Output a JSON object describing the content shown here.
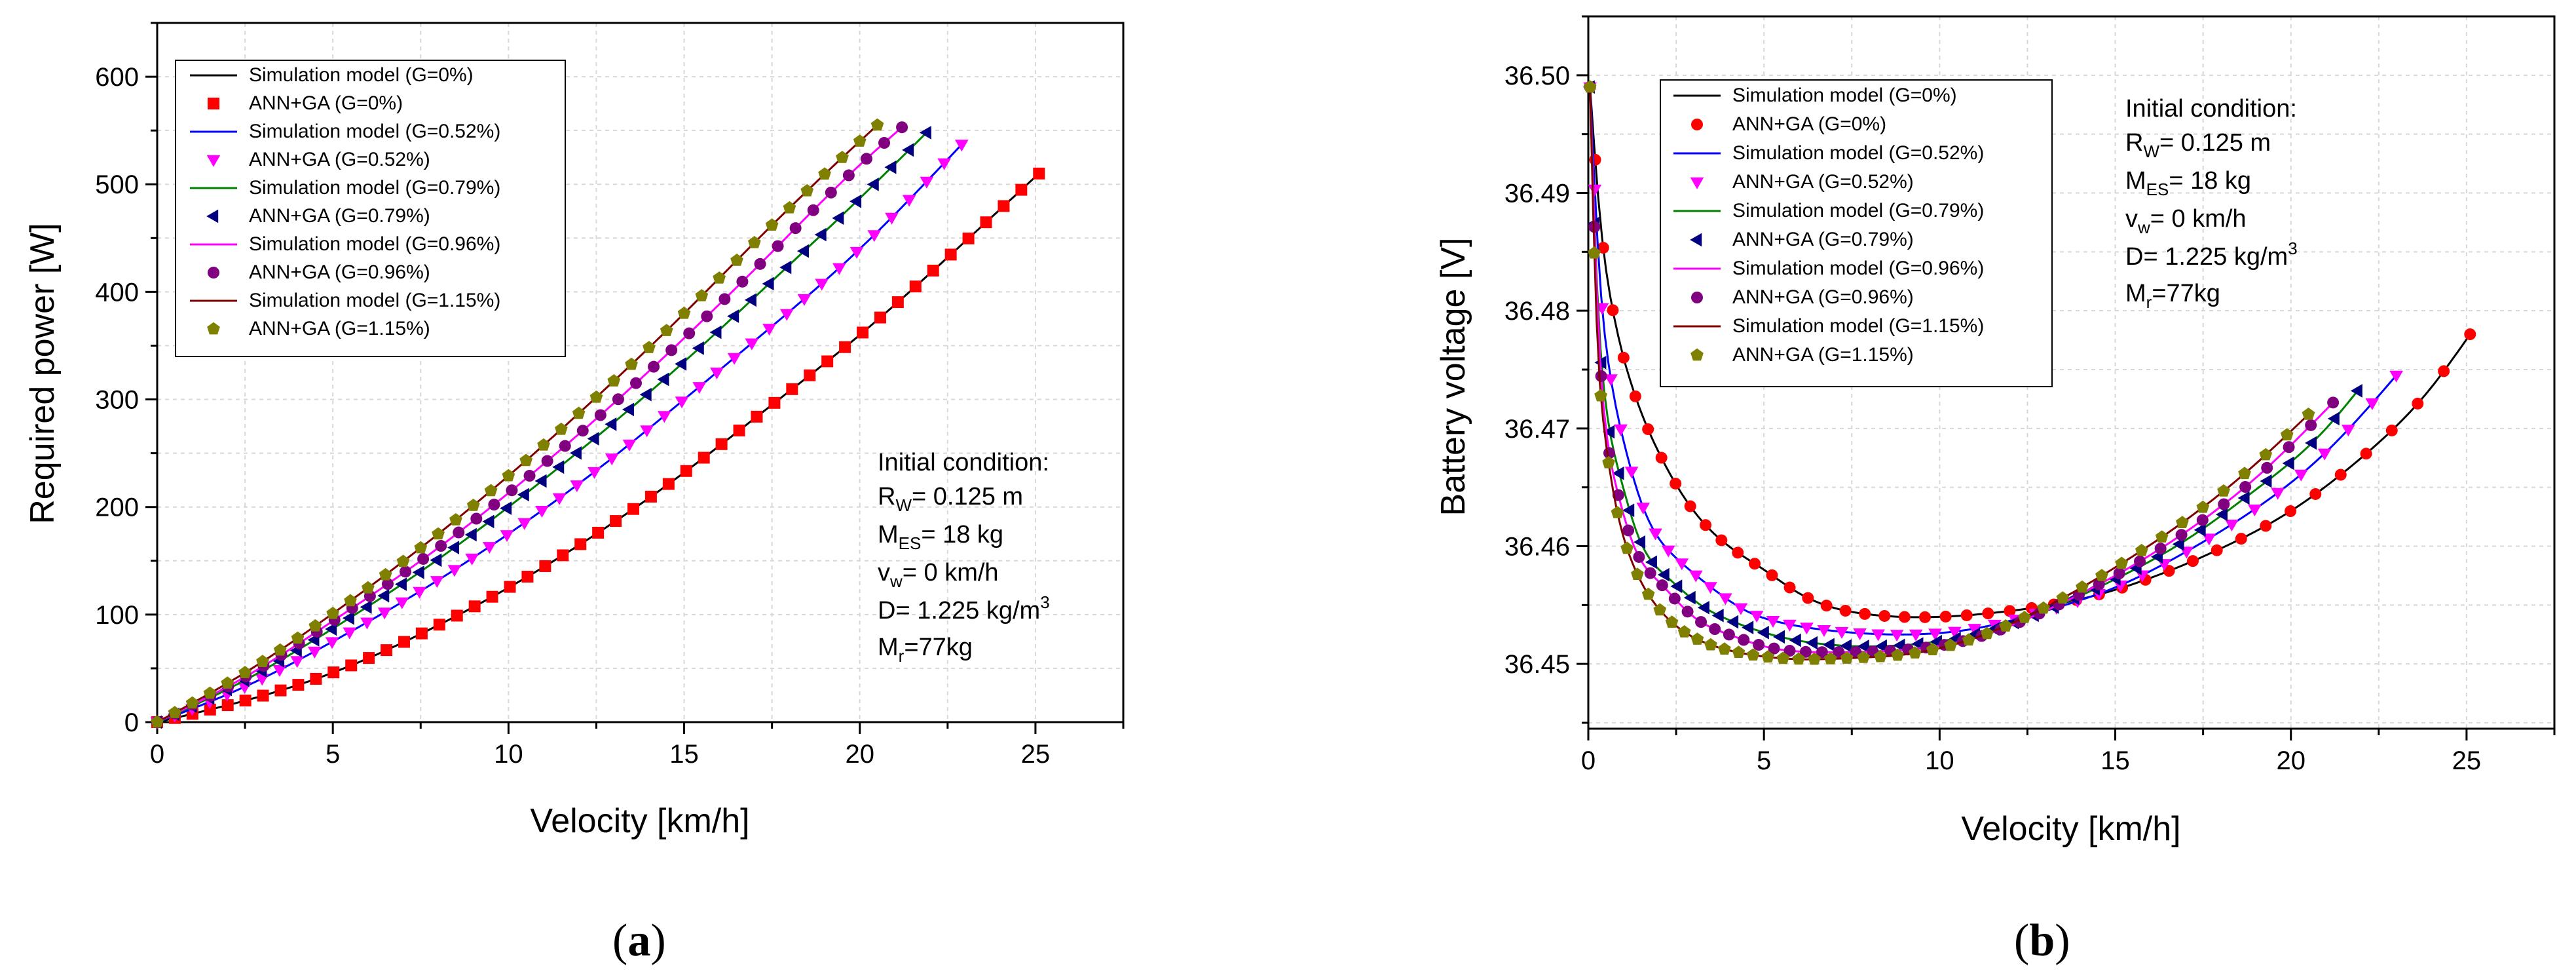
{
  "chart_data": [
    {
      "type": "line",
      "panel": "a",
      "caption": "(a)",
      "caption_letter": "a",
      "xlabel": "Velocity [km/h]",
      "ylabel": "Required power [W]",
      "xlim": [
        0,
        27.5
      ],
      "ylim": [
        0,
        650
      ],
      "xticks": [
        0,
        5,
        10,
        15,
        20,
        25
      ],
      "yticks": [
        0,
        100,
        200,
        300,
        400,
        500,
        600
      ],
      "grid": true,
      "legend": {
        "placement": "top-left",
        "entries": [
          {
            "label": "Simulation model (G=0%)",
            "kind": "line",
            "color": "#000000"
          },
          {
            "label": "ANN+GA (G=0%)",
            "kind": "marker",
            "marker": "square",
            "color": "#ff0000"
          },
          {
            "label": "Simulation model (G=0.52%)",
            "kind": "line",
            "color": "#0000ff"
          },
          {
            "label": "ANN+GA (G=0.52%)",
            "kind": "marker",
            "marker": "triangle-down",
            "color": "#ff00ff"
          },
          {
            "label": "Simulation model (G=0.79%)",
            "kind": "line",
            "color": "#008000"
          },
          {
            "label": "ANN+GA (G=0.79%)",
            "kind": "marker",
            "marker": "triangle-left",
            "color": "#000080"
          },
          {
            "label": "Simulation model (G=0.96%)",
            "kind": "line",
            "color": "#ff00ff"
          },
          {
            "label": "ANN+GA (G=0.96%)",
            "kind": "marker",
            "marker": "circle",
            "color": "#800080"
          },
          {
            "label": "Simulation model (G=1.15%)",
            "kind": "line",
            "color": "#800000"
          },
          {
            "label": "ANN+GA (G=1.15%)",
            "kind": "marker",
            "marker": "pentagon",
            "color": "#808000"
          }
        ]
      },
      "annotation": {
        "placement": "right-middle",
        "lines": [
          {
            "main": "Initial condition:"
          },
          {
            "main": "R",
            "sub": "W",
            "rest": "= 0.125 m"
          },
          {
            "main": "M",
            "sub": "ES",
            "rest": "= 18 kg"
          },
          {
            "main": "v",
            "sub": "w",
            "rest": "= 0 km/h"
          },
          {
            "main": "D= 1.225 kg/m",
            "sup": "3"
          },
          {
            "main": "M",
            "sub": "r",
            "rest": "=77kg"
          }
        ]
      },
      "series": [
        {
          "name": "G=0%",
          "line_color": "#000000",
          "marker": "square",
          "marker_color": "#ff0000",
          "x": [
            0,
            2.5,
            5,
            7.5,
            10,
            12.5,
            15,
            17.5,
            20,
            22.5,
            25.1
          ],
          "y": [
            0,
            20,
            46,
            82,
            125,
            175,
            232,
            295,
            360,
            432,
            510
          ]
        },
        {
          "name": "G=0.52%",
          "line_color": "#0000ff",
          "marker": "triangle-down",
          "marker_color": "#ff00ff",
          "x": [
            0,
            2.5,
            5,
            7.5,
            10,
            12.5,
            15,
            17.5,
            20,
            22.9
          ],
          "y": [
            0,
            33,
            75,
            122,
            175,
            234,
            300,
            368,
            440,
            537
          ]
        },
        {
          "name": "G=0.79%",
          "line_color": "#008000",
          "marker": "triangle-left",
          "marker_color": "#000080",
          "x": [
            0,
            2.5,
            5,
            7.5,
            10,
            12.5,
            15,
            17.5,
            20,
            21.9
          ],
          "y": [
            0,
            39,
            87,
            140,
            200,
            265,
            335,
            410,
            487,
            548
          ]
        },
        {
          "name": "G=0.96%",
          "line_color": "#ff00ff",
          "marker": "circle",
          "marker_color": "#800080",
          "x": [
            0,
            2.5,
            5,
            7.5,
            10,
            12.5,
            15,
            17.5,
            20,
            21.2
          ],
          "y": [
            0,
            42,
            94,
            150,
            213,
            282,
            357,
            437,
            518,
            553
          ]
        },
        {
          "name": "G=1.15%",
          "line_color": "#800000",
          "marker": "pentagon",
          "marker_color": "#808000",
          "x": [
            0,
            2.5,
            5,
            7.5,
            10,
            12.5,
            15,
            17.5,
            20,
            20.5
          ],
          "y": [
            0,
            46,
            101,
            162,
            229,
            302,
            380,
            462,
            540,
            555
          ]
        }
      ]
    },
    {
      "type": "line",
      "panel": "b",
      "caption": "(b)",
      "caption_letter": "b",
      "xlabel": "Velocity [km/h]",
      "ylabel": "Battery voltage [V]",
      "xlim": [
        0,
        27.5
      ],
      "ylim": [
        36.4445,
        36.505
      ],
      "xticks": [
        0,
        5,
        10,
        15,
        20,
        25
      ],
      "yticks": [
        "36.45",
        "36.46",
        "36.47",
        "36.48",
        "36.49",
        "36.50"
      ],
      "grid": true,
      "legend": {
        "placement": "top-center",
        "entries": [
          {
            "label": "Simulation model (G=0%)",
            "kind": "line",
            "color": "#000000"
          },
          {
            "label": "ANN+GA (G=0%)",
            "kind": "marker",
            "marker": "circle",
            "color": "#ff0000"
          },
          {
            "label": "Simulation model (G=0.52%)",
            "kind": "line",
            "color": "#0000ff"
          },
          {
            "label": "ANN+GA (G=0.52%)",
            "kind": "marker",
            "marker": "triangle-down",
            "color": "#ff00ff"
          },
          {
            "label": "Simulation model (G=0.79%)",
            "kind": "line",
            "color": "#008000"
          },
          {
            "label": "ANN+GA (G=0.79%)",
            "kind": "marker",
            "marker": "triangle-left",
            "color": "#000080"
          },
          {
            "label": "Simulation model (G=0.96%)",
            "kind": "line",
            "color": "#ff00ff"
          },
          {
            "label": "ANN+GA (G=0.96%)",
            "kind": "marker",
            "marker": "circle",
            "color": "#800080"
          },
          {
            "label": "Simulation model (G=1.15%)",
            "kind": "line",
            "color": "#800000"
          },
          {
            "label": "ANN+GA (G=1.15%)",
            "kind": "marker",
            "marker": "pentagon",
            "color": "#808000"
          }
        ]
      },
      "annotation": {
        "placement": "top-right",
        "lines": [
          {
            "main": "Initial condition:"
          },
          {
            "main": "R",
            "sub": "W",
            "rest": "= 0.125 m"
          },
          {
            "main": "M",
            "sub": "ES",
            "rest": "= 18 kg"
          },
          {
            "main": "v",
            "sub": "w",
            "rest": "= 0 km/h"
          },
          {
            "main": "D= 1.225 kg/m",
            "sup": "3"
          },
          {
            "main": "M",
            "sub": "r",
            "rest": "=77kg"
          }
        ]
      },
      "series": [
        {
          "name": "G=0%",
          "line_color": "#000000",
          "marker": "circle",
          "marker_color": "#ff0000",
          "x": [
            0.05,
            0.3,
            0.7,
            1.2,
            2,
            3,
            4,
            5,
            6,
            8,
            10,
            12,
            14,
            16,
            18,
            20,
            22,
            24,
            25.1
          ],
          "y": [
            36.499,
            36.489,
            36.48,
            36.474,
            36.468,
            36.463,
            36.46,
            36.458,
            36.456,
            36.4542,
            36.454,
            36.4545,
            36.4555,
            36.4573,
            36.4598,
            36.463,
            36.4675,
            36.4735,
            36.478
          ]
        },
        {
          "name": "G=0.52%",
          "line_color": "#0000ff",
          "marker": "triangle-down",
          "marker_color": "#ff00ff",
          "x": [
            0.05,
            0.3,
            0.6,
            1,
            1.6,
            2.5,
            3.5,
            4.5,
            5.5,
            7,
            9,
            11,
            13,
            15,
            17,
            19,
            21,
            23
          ],
          "y": [
            36.499,
            36.484,
            36.475,
            36.469,
            36.463,
            36.459,
            36.4565,
            36.4545,
            36.4535,
            36.4528,
            36.4525,
            36.453,
            36.4545,
            36.4565,
            36.4595,
            36.4632,
            36.468,
            36.4745
          ]
        },
        {
          "name": "G=0.79%",
          "line_color": "#008000",
          "marker": "triangle-left",
          "marker_color": "#000080",
          "x": [
            0.05,
            0.25,
            0.5,
            0.9,
            1.4,
            2.2,
            3.2,
            4.2,
            5.2,
            7,
            9,
            11,
            13,
            15,
            17,
            19,
            21,
            21.9
          ],
          "y": [
            36.499,
            36.482,
            36.472,
            36.466,
            36.461,
            36.4575,
            36.455,
            36.4535,
            36.4525,
            36.4516,
            36.4516,
            36.4525,
            36.4545,
            36.4572,
            36.4605,
            36.4648,
            36.47,
            36.4732
          ]
        },
        {
          "name": "G=0.96%",
          "line_color": "#ff00ff",
          "marker": "circle",
          "marker_color": "#800080",
          "x": [
            0.05,
            0.25,
            0.5,
            0.8,
            1.3,
            2,
            3,
            4,
            5,
            7,
            9,
            11,
            13,
            15,
            17,
            19,
            21.2
          ],
          "y": [
            36.499,
            36.481,
            36.47,
            36.465,
            36.46,
            36.457,
            36.454,
            36.4525,
            36.4515,
            36.451,
            36.4512,
            36.4522,
            36.4545,
            36.4575,
            36.4612,
            36.4658,
            36.4722
          ]
        },
        {
          "name": "G=1.15%",
          "line_color": "#800000",
          "marker": "pentagon",
          "marker_color": "#808000",
          "x": [
            0.05,
            0.2,
            0.45,
            0.75,
            1.2,
            1.8,
            2.6,
            3.6,
            4.6,
            6,
            7.5,
            9,
            11,
            13,
            15,
            17,
            19,
            20.5
          ],
          "y": [
            36.499,
            36.482,
            36.47,
            36.464,
            36.459,
            36.4555,
            36.453,
            36.4515,
            36.4508,
            36.4504,
            36.4505,
            36.4508,
            36.4522,
            36.4548,
            36.4582,
            36.4622,
            36.467,
            36.4712
          ]
        }
      ]
    }
  ]
}
